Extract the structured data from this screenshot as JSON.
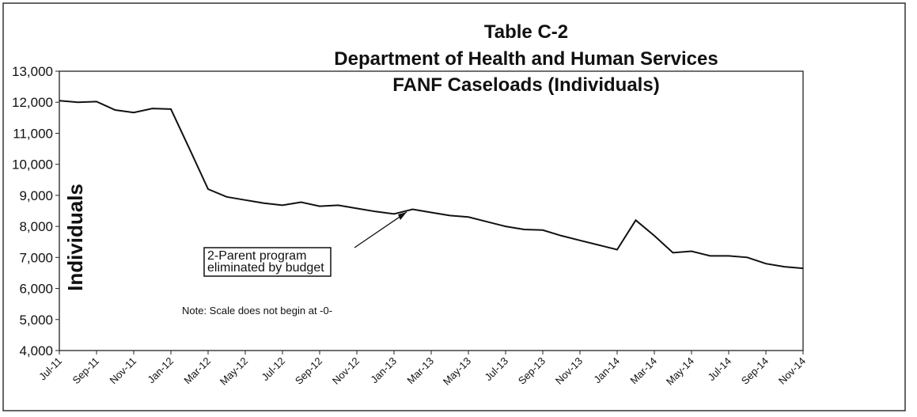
{
  "chart_data": {
    "type": "line",
    "title": "Table C-2",
    "subtitle": "Department of Health and Human Services",
    "subtitle2": "FANF Caseloads (Individuals)",
    "y_label": "Individuals",
    "categories": [
      "Jul-11",
      null,
      "Sep-11",
      null,
      "Nov-11",
      null,
      "Jan-12",
      null,
      "Mar-12",
      null,
      "May-12",
      null,
      "Jul-12",
      null,
      "Sep-12",
      null,
      "Nov-12",
      null,
      "Jan-13",
      null,
      "Mar-13",
      null,
      "May-13",
      null,
      "Jul-13",
      null,
      "Sep-13",
      null,
      "Nov-13",
      null,
      "Jan-14",
      null,
      "Mar-14",
      null,
      "May-14",
      null,
      "Jul-14",
      null,
      "Sep-14",
      null,
      "Nov-14"
    ],
    "values": [
      12050,
      12000,
      12020,
      11750,
      11670,
      11800,
      11780,
      10500,
      9200,
      8950,
      8850,
      8750,
      8680,
      8780,
      8650,
      8680,
      8580,
      8480,
      8400,
      8550,
      8450,
      8350,
      8300,
      8150,
      8000,
      7900,
      7880,
      7700,
      7550,
      7400,
      7250,
      8200,
      7700,
      7150,
      7200,
      7050,
      7050,
      7000,
      6800,
      6700,
      6650
    ],
    "color": "#111111",
    "ylim": [
      4000,
      13000
    ],
    "yticks": [
      {
        "value": 4000,
        "label": "4,000"
      },
      {
        "value": 5000,
        "label": "5,000"
      },
      {
        "value": 6000,
        "label": "6,000"
      },
      {
        "value": 7000,
        "label": "7,000"
      },
      {
        "value": 8000,
        "label": "8,000"
      },
      {
        "value": 9000,
        "label": "9,000"
      },
      {
        "value": 10000,
        "label": "10,000"
      },
      {
        "value": 11000,
        "label": "11,000"
      },
      {
        "value": 12000,
        "label": "12,000"
      },
      {
        "value": 13000,
        "label": "13,000"
      }
    ],
    "annotation": [
      "2-Parent program",
      "eliminated by budget"
    ],
    "note": "Note:  Scale does not begin at -0-"
  }
}
